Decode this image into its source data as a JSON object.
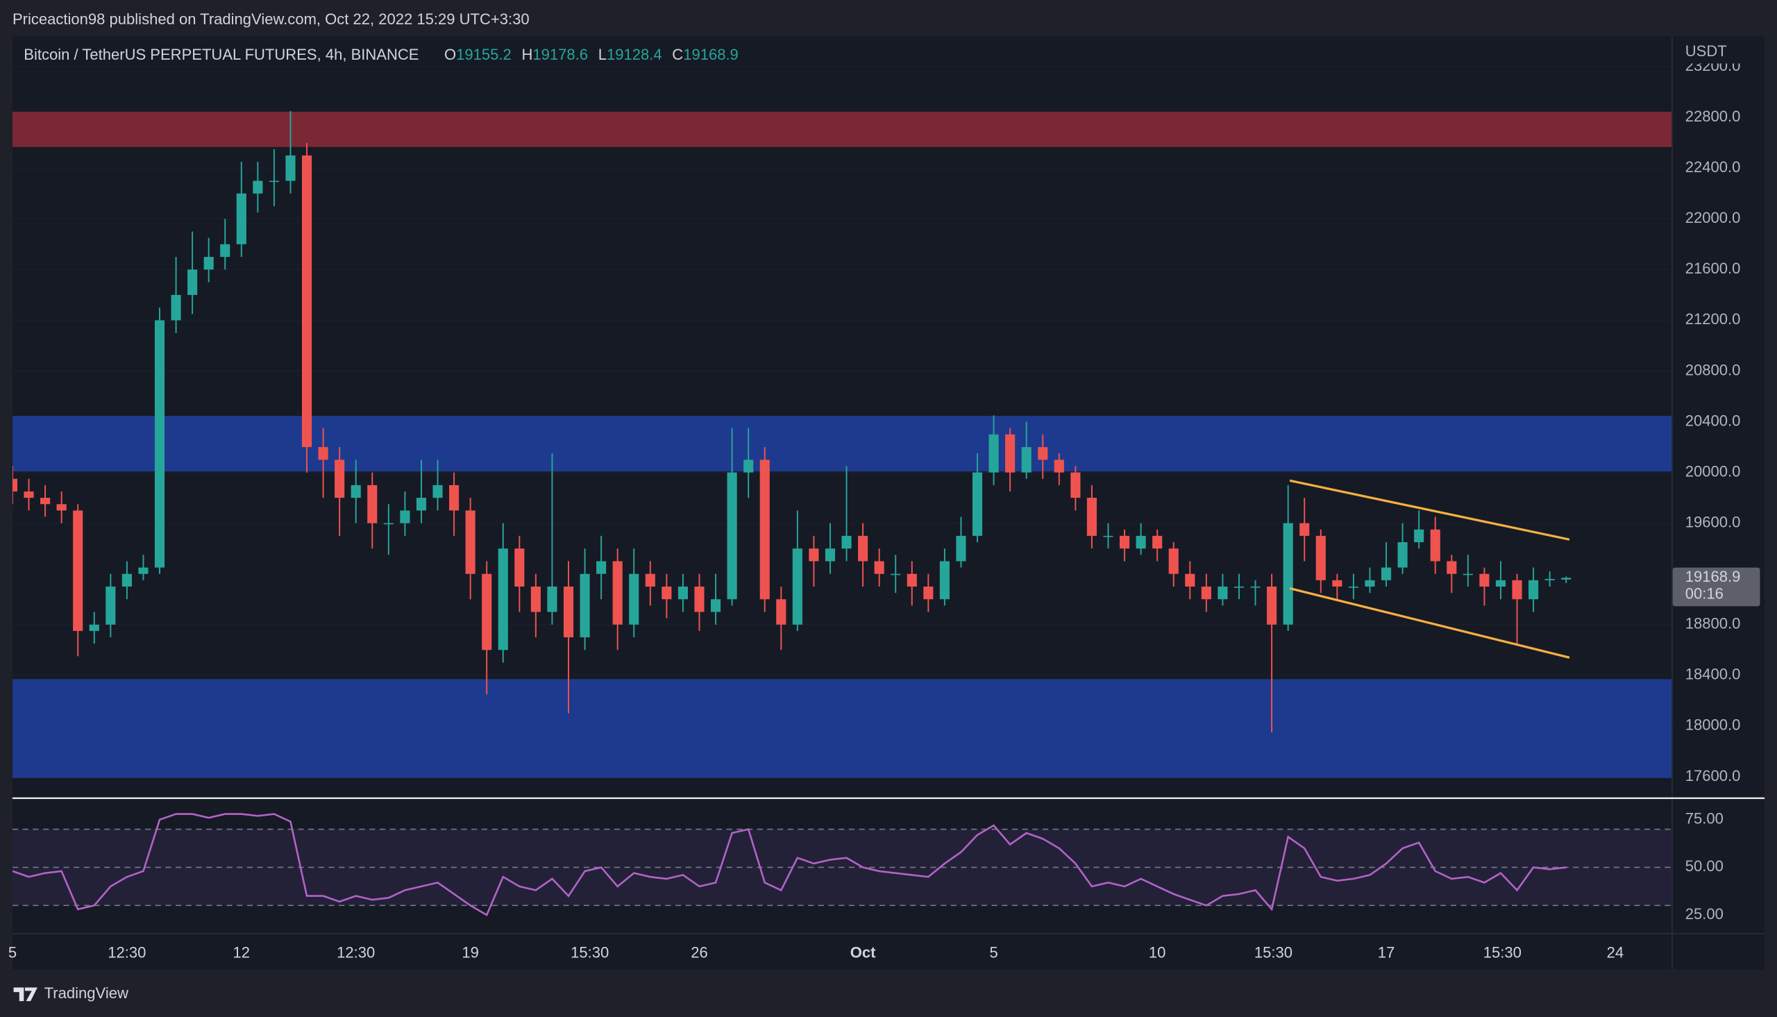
{
  "header": {
    "published": "Priceaction98 published on TradingView.com, Oct 22, 2022 15:29 UTC+3:30"
  },
  "chart_data": [
    {
      "type": "candlestick",
      "title": "Bitcoin / TetherUS PERPETUAL FUTURES, 4h, BINANCE",
      "ohlc_labels": [
        "O",
        "H",
        "L",
        "C"
      ],
      "axis_label": "USDT",
      "countdown": "00:16",
      "up_color": "#26a69a",
      "down_color": "#ef5350",
      "open": [
        19950,
        19850,
        19800,
        19750,
        19700,
        18750,
        18800,
        19100,
        19200,
        19250,
        21200,
        21400,
        21600,
        21700,
        21800,
        22200,
        22300,
        22300,
        22500,
        20200,
        20100,
        19800,
        19900,
        19600,
        19600,
        19700,
        19800,
        19900,
        19700,
        19200,
        18600,
        19400,
        19100,
        18900,
        19100,
        18700,
        19200,
        19300,
        18800,
        19200,
        19100,
        19000,
        19100,
        18900,
        19000,
        20000,
        20100,
        19000,
        18800,
        19400,
        19300,
        19400,
        19500,
        19300,
        19200,
        19200,
        19100,
        19000,
        19300,
        19500,
        20000,
        20300,
        20000,
        20200,
        20100,
        20000,
        19800,
        19500,
        19500,
        19400,
        19500,
        19400,
        19200,
        19100,
        19000,
        19100,
        19100,
        19100,
        18800,
        19600,
        19500,
        19150,
        19100,
        19100,
        19150,
        19250,
        19450,
        19550,
        19300,
        19200,
        19200,
        19100,
        19150,
        19000,
        19150,
        19155.2
      ],
      "high": [
        20050,
        19950,
        19900,
        19850,
        19750,
        18900,
        19200,
        19300,
        19350,
        21300,
        21700,
        21900,
        21850,
        22000,
        22450,
        22450,
        22550,
        22850,
        22600,
        20350,
        20200,
        20100,
        20000,
        19750,
        19850,
        20100,
        20100,
        20000,
        19800,
        19300,
        19600,
        19500,
        19200,
        20150,
        19300,
        19400,
        19500,
        19400,
        19400,
        19300,
        19200,
        19200,
        19200,
        19200,
        20350,
        20350,
        20200,
        19100,
        19700,
        19500,
        19600,
        20050,
        19600,
        19400,
        19350,
        19300,
        19200,
        19400,
        19650,
        20150,
        20450,
        20350,
        20400,
        20300,
        20150,
        20050,
        19900,
        19600,
        19550,
        19600,
        19550,
        19450,
        19300,
        19200,
        19200,
        19200,
        19150,
        19200,
        19900,
        19800,
        19550,
        19200,
        19200,
        19250,
        19450,
        19600,
        19700,
        19650,
        19350,
        19350,
        19250,
        19300,
        19200,
        19250,
        19220,
        19178.6
      ],
      "low": [
        19750,
        19700,
        19650,
        19600,
        18550,
        18650,
        18700,
        19000,
        19150,
        19200,
        21100,
        21250,
        21500,
        21600,
        21700,
        22050,
        22100,
        22200,
        20000,
        19800,
        19500,
        19600,
        19400,
        19350,
        19500,
        19600,
        19700,
        19500,
        19000,
        18250,
        18500,
        18900,
        18700,
        18800,
        18100,
        18600,
        19000,
        18600,
        18700,
        18950,
        18850,
        18900,
        18750,
        18800,
        18950,
        19800,
        18900,
        18600,
        18750,
        19100,
        19200,
        19300,
        19100,
        19100,
        19050,
        18950,
        18900,
        18950,
        19250,
        19450,
        19900,
        19850,
        19950,
        19950,
        19900,
        19700,
        19400,
        19400,
        19300,
        19350,
        19300,
        19100,
        19000,
        18900,
        18950,
        19000,
        18950,
        17950,
        18750,
        19300,
        19050,
        19000,
        19000,
        19050,
        19100,
        19200,
        19400,
        19200,
        19050,
        19100,
        18950,
        19000,
        18650,
        18900,
        19100,
        19128.4
      ],
      "close": [
        19850,
        19800,
        19750,
        19700,
        18750,
        18800,
        19100,
        19200,
        19250,
        21200,
        21400,
        21600,
        21700,
        21800,
        22200,
        22300,
        22300,
        22500,
        20200,
        20100,
        19800,
        19900,
        19600,
        19600,
        19700,
        19800,
        19900,
        19700,
        19200,
        18600,
        19400,
        19100,
        18900,
        19100,
        18700,
        19200,
        19300,
        18800,
        19200,
        19100,
        19000,
        19100,
        18900,
        19000,
        20000,
        20100,
        19000,
        18800,
        19400,
        19300,
        19400,
        19500,
        19300,
        19200,
        19200,
        19100,
        19000,
        19300,
        19500,
        20000,
        20300,
        20000,
        20200,
        20100,
        20000,
        19800,
        19500,
        19500,
        19400,
        19500,
        19400,
        19200,
        19100,
        19000,
        19100,
        19100,
        19100,
        18800,
        19600,
        19500,
        19150,
        19100,
        19100,
        19150,
        19250,
        19450,
        19550,
        19300,
        19200,
        19200,
        19100,
        19150,
        19000,
        19150,
        19160,
        19168.9
      ],
      "xlim": [
        0,
        101.45
      ],
      "xticks": [
        {
          "value": 0,
          "label": "5"
        },
        {
          "value": 7,
          "label": "12:30"
        },
        {
          "value": 14,
          "label": "12"
        },
        {
          "value": 21,
          "label": "12:30"
        },
        {
          "value": 28,
          "label": "19"
        },
        {
          "value": 35.3,
          "label": "15:30"
        },
        {
          "value": 42,
          "label": "26"
        },
        {
          "value": 52,
          "label": "Oct"
        },
        {
          "value": 60,
          "label": "5"
        },
        {
          "value": 70,
          "label": "10"
        },
        {
          "value": 77.1,
          "label": "15:30"
        },
        {
          "value": 84,
          "label": "17"
        },
        {
          "value": 91.1,
          "label": "15:30"
        },
        {
          "value": 98,
          "label": "24"
        }
      ],
      "ylim": [
        17440,
        23440
      ],
      "yticks": [
        {
          "value": 17600,
          "label": "17600.0"
        },
        {
          "value": 18000,
          "label": "18000.0"
        },
        {
          "value": 18400,
          "label": "18400.0"
        },
        {
          "value": 18800,
          "label": "18800.0"
        },
        {
          "value": 19600,
          "label": "19600.0"
        },
        {
          "value": 20000,
          "label": "20000.0"
        },
        {
          "value": 20400,
          "label": "20400.0"
        },
        {
          "value": 20800,
          "label": "20800.0"
        },
        {
          "value": 21200,
          "label": "21200.0"
        },
        {
          "value": 21600,
          "label": "21600.0"
        },
        {
          "value": 22000,
          "label": "22000.0"
        },
        {
          "value": 22400,
          "label": "22400.0"
        },
        {
          "value": 22800,
          "label": "22800.0"
        },
        {
          "value": 23200,
          "label": "23200.0"
        }
      ],
      "grid": true,
      "zones": [
        {
          "from": 22567,
          "to": 22845,
          "color": "#7b2834"
        },
        {
          "from": 20008,
          "to": 20446,
          "color": "#1e3a8e"
        },
        {
          "from": 17590,
          "to": 18370,
          "color": "#1e3a8e"
        }
      ],
      "trendlines": [
        {
          "x": [
            78.1,
            95.2
          ],
          "y": [
            19936,
            19471
          ],
          "color": "#f5b041"
        },
        {
          "x": [
            78.1,
            95.2
          ],
          "y": [
            19086,
            18540
          ],
          "color": "#f5b041"
        }
      ]
    },
    {
      "type": "line",
      "color": "#b462c7",
      "values": [
        48,
        45,
        47,
        48,
        28,
        30,
        40,
        45,
        48,
        75,
        78,
        78,
        76,
        78,
        78,
        77,
        78,
        74,
        35,
        35,
        32,
        35,
        33,
        34,
        38,
        40,
        42,
        36,
        30,
        25,
        45,
        40,
        38,
        44,
        35,
        48,
        50,
        40,
        47,
        45,
        44,
        46,
        40,
        42,
        68,
        70,
        42,
        38,
        55,
        52,
        54,
        55,
        50,
        48,
        47,
        46,
        45,
        52,
        58,
        67,
        72,
        62,
        68,
        65,
        60,
        52,
        40,
        42,
        40,
        44,
        40,
        36,
        33,
        30,
        35,
        36,
        38,
        28,
        66,
        60,
        45,
        43,
        44,
        46,
        52,
        60,
        63,
        48,
        44,
        45,
        42,
        47,
        38,
        50,
        49,
        50
      ],
      "xlim": [
        0,
        101.45
      ],
      "ylim": [
        15.5,
        85.7
      ],
      "yticks": [
        {
          "value": 25,
          "label": "25.00"
        },
        {
          "value": 50,
          "label": "50.00"
        },
        {
          "value": 75,
          "label": "75.00"
        }
      ],
      "levels": [
        30,
        50,
        70
      ]
    }
  ],
  "footer": {
    "brand": "TradingView"
  }
}
